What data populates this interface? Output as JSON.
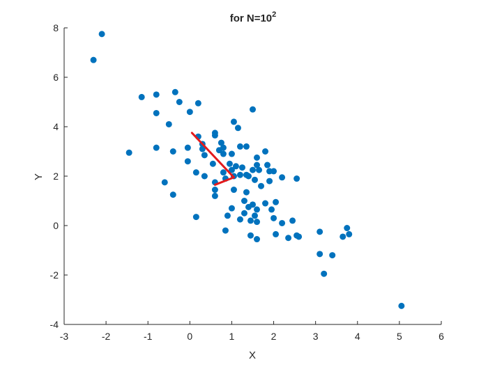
{
  "chart_data": {
    "type": "scatter",
    "title": "for N=10",
    "title_superscript": "2",
    "xlabel": "X",
    "ylabel": "Y",
    "xlim": [
      -3,
      6
    ],
    "ylim": [
      -4,
      8
    ],
    "xticks": [
      -3,
      -2,
      -1,
      0,
      1,
      2,
      3,
      4,
      5,
      6
    ],
    "yticks": [
      -4,
      -2,
      0,
      2,
      4,
      6,
      8
    ],
    "grid": false,
    "colors": {
      "points": "#0072BD",
      "vectors": "#E31A1C",
      "axes": "#262626"
    },
    "points": [
      [
        -2.3,
        6.7
      ],
      [
        -2.1,
        7.75
      ],
      [
        -1.45,
        2.95
      ],
      [
        -1.15,
        5.2
      ],
      [
        -0.8,
        5.3
      ],
      [
        -0.8,
        4.55
      ],
      [
        -0.8,
        3.15
      ],
      [
        -0.6,
        1.75
      ],
      [
        -0.5,
        4.1
      ],
      [
        -0.4,
        3.0
      ],
      [
        -0.4,
        1.25
      ],
      [
        -0.35,
        5.4
      ],
      [
        -0.25,
        5.0
      ],
      [
        -0.05,
        3.15
      ],
      [
        -0.05,
        2.6
      ],
      [
        0.0,
        4.6
      ],
      [
        0.15,
        2.15
      ],
      [
        0.15,
        0.35
      ],
      [
        0.2,
        4.95
      ],
      [
        0.2,
        3.6
      ],
      [
        0.3,
        3.3
      ],
      [
        0.3,
        3.1
      ],
      [
        0.35,
        2.85
      ],
      [
        0.35,
        2.0
      ],
      [
        0.55,
        2.5
      ],
      [
        0.6,
        3.75
      ],
      [
        0.6,
        3.65
      ],
      [
        0.6,
        1.75
      ],
      [
        0.6,
        1.45
      ],
      [
        0.6,
        1.2
      ],
      [
        0.7,
        3.05
      ],
      [
        0.75,
        3.35
      ],
      [
        0.8,
        3.15
      ],
      [
        0.8,
        2.9
      ],
      [
        0.8,
        2.15
      ],
      [
        0.85,
        1.9
      ],
      [
        0.85,
        -0.2
      ],
      [
        0.9,
        0.4
      ],
      [
        0.95,
        2.5
      ],
      [
        1.0,
        2.9
      ],
      [
        1.0,
        2.25
      ],
      [
        1.0,
        0.7
      ],
      [
        1.05,
        4.2
      ],
      [
        1.05,
        2.0
      ],
      [
        1.05,
        1.45
      ],
      [
        1.1,
        2.4
      ],
      [
        1.15,
        3.95
      ],
      [
        1.2,
        3.2
      ],
      [
        1.2,
        2.05
      ],
      [
        1.2,
        0.25
      ],
      [
        1.25,
        2.35
      ],
      [
        1.3,
        1.0
      ],
      [
        1.3,
        0.5
      ],
      [
        1.35,
        3.2
      ],
      [
        1.35,
        2.05
      ],
      [
        1.35,
        1.35
      ],
      [
        1.4,
        2.0
      ],
      [
        1.4,
        0.75
      ],
      [
        1.45,
        0.2
      ],
      [
        1.45,
        -0.4
      ],
      [
        1.5,
        4.7
      ],
      [
        1.5,
        2.25
      ],
      [
        1.5,
        0.85
      ],
      [
        1.55,
        1.85
      ],
      [
        1.55,
        0.4
      ],
      [
        1.6,
        2.75
      ],
      [
        1.6,
        2.45
      ],
      [
        1.6,
        0.65
      ],
      [
        1.6,
        0.15
      ],
      [
        1.6,
        -0.55
      ],
      [
        1.65,
        2.25
      ],
      [
        1.7,
        1.6
      ],
      [
        1.8,
        3.0
      ],
      [
        1.8,
        0.9
      ],
      [
        1.85,
        2.45
      ],
      [
        1.9,
        2.2
      ],
      [
        1.9,
        1.8
      ],
      [
        1.95,
        0.65
      ],
      [
        2.0,
        2.2
      ],
      [
        2.0,
        0.3
      ],
      [
        2.05,
        0.95
      ],
      [
        2.05,
        -0.35
      ],
      [
        2.2,
        1.95
      ],
      [
        2.2,
        0.1
      ],
      [
        2.35,
        -0.5
      ],
      [
        2.45,
        0.2
      ],
      [
        2.55,
        1.9
      ],
      [
        2.55,
        -0.4
      ],
      [
        2.6,
        -0.45
      ],
      [
        3.1,
        -0.25
      ],
      [
        3.1,
        -1.15
      ],
      [
        3.2,
        -1.95
      ],
      [
        3.4,
        -1.2
      ],
      [
        3.65,
        -0.45
      ],
      [
        3.75,
        -0.1
      ],
      [
        3.8,
        -0.35
      ],
      [
        5.05,
        -3.25
      ]
    ],
    "vectors": [
      {
        "from": [
          1.05,
          1.95
        ],
        "to": [
          0.05,
          3.75
        ]
      },
      {
        "from": [
          1.05,
          1.95
        ],
        "to": [
          0.6,
          1.65
        ]
      }
    ]
  }
}
